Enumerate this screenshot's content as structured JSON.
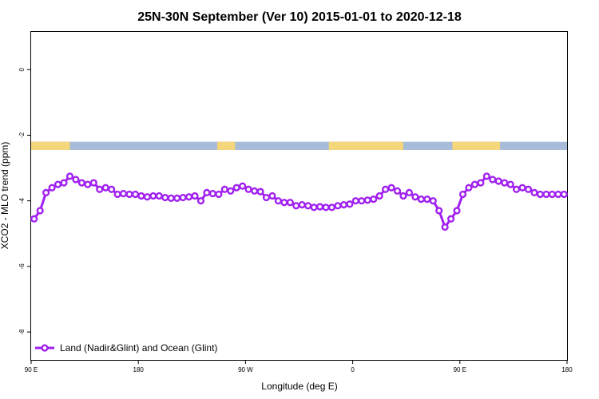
{
  "chart_data": {
    "type": "line",
    "title": "25N-30N September (Ver 10)   2015-01-01 to 2020-12-18",
    "xlabel": "Longitude (deg E)",
    "ylabel": "XCO2 - MLO trend (ppm)",
    "xlim": [
      90,
      450
    ],
    "ylim": [
      -8.85,
      1.15
    ],
    "x_ticks": [
      {
        "value": 90,
        "label": "90 E"
      },
      {
        "value": 162,
        "label": "180"
      },
      {
        "value": 234,
        "label": "90 W"
      },
      {
        "value": 306,
        "label": "0"
      },
      {
        "value": 378,
        "label": "90 E"
      },
      {
        "value": 450,
        "label": "180"
      }
    ],
    "y_ticks": [
      {
        "value": 0,
        "label": "0"
      },
      {
        "value": -2,
        "label": "-2"
      },
      {
        "value": -4,
        "label": "-4"
      },
      {
        "value": -6,
        "label": "-6"
      },
      {
        "value": -8,
        "label": "-8"
      }
    ],
    "land_ocean_band": {
      "y_range": [
        -2.45,
        -2.2
      ],
      "ocean_color": "#a7bcd8",
      "land_color": "#f5d67a",
      "land_segments": [
        [
          90,
          116
        ],
        [
          215,
          227
        ],
        [
          290,
          340
        ],
        [
          373,
          405
        ]
      ]
    },
    "series": [
      {
        "name": "Land (Nadir&Glint) and Ocean (Glint)",
        "color": "#a020f0",
        "x": [
          92,
          96,
          100,
          104,
          108,
          112,
          116,
          120,
          124,
          128,
          132,
          136,
          140,
          144,
          148,
          152,
          156,
          160,
          164,
          168,
          172,
          176,
          180,
          184,
          188,
          192,
          196,
          200,
          204,
          208,
          212,
          216,
          220,
          224,
          228,
          232,
          236,
          240,
          244,
          248,
          252,
          256,
          260,
          264,
          268,
          272,
          276,
          280,
          284,
          288,
          292,
          296,
          300,
          304,
          308,
          312,
          316,
          320,
          324,
          328,
          332,
          336,
          340,
          344,
          348,
          352,
          356,
          360,
          364,
          368,
          372,
          376,
          380,
          384,
          388,
          392,
          396,
          400,
          404,
          408,
          412,
          416,
          420,
          424,
          428,
          432,
          436,
          440,
          444,
          448
        ],
        "y": [
          -4.55,
          -4.3,
          -3.75,
          -3.6,
          -3.5,
          -3.45,
          -3.25,
          -3.35,
          -3.45,
          -3.5,
          -3.45,
          -3.65,
          -3.6,
          -3.65,
          -3.8,
          -3.78,
          -3.8,
          -3.8,
          -3.85,
          -3.88,
          -3.85,
          -3.85,
          -3.9,
          -3.92,
          -3.92,
          -3.9,
          -3.88,
          -3.85,
          -4.0,
          -3.75,
          -3.78,
          -3.8,
          -3.65,
          -3.7,
          -3.6,
          -3.55,
          -3.65,
          -3.7,
          -3.72,
          -3.9,
          -3.85,
          -4.0,
          -4.05,
          -4.05,
          -4.15,
          -4.12,
          -4.15,
          -4.2,
          -4.18,
          -4.2,
          -4.2,
          -4.15,
          -4.12,
          -4.1,
          -4.0,
          -4.0,
          -3.98,
          -3.95,
          -3.85,
          -3.65,
          -3.6,
          -3.7,
          -3.85,
          -3.75,
          -3.88,
          -3.95,
          -3.95,
          -4.0,
          -4.3,
          -4.8,
          -4.55,
          -4.3,
          -3.8,
          -3.6,
          -3.5,
          -3.45,
          -3.25,
          -3.35,
          -3.4,
          -3.45,
          -3.5,
          -3.65,
          -3.6,
          -3.65,
          -3.75,
          -3.8,
          -3.8,
          -3.8,
          -3.8,
          -3.8
        ]
      }
    ],
    "legend": {
      "position": "bottom-left",
      "entries": [
        "Land (Nadir&Glint) and Ocean (Glint)"
      ]
    },
    "grid": false
  }
}
